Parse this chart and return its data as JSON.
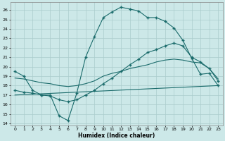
{
  "xlabel": "Humidex (Indice chaleur)",
  "bg_color": "#cce8e8",
  "grid_color": "#aacccc",
  "line_color": "#1a6b6b",
  "xlim": [
    -0.5,
    23.5
  ],
  "ylim": [
    13.8,
    26.8
  ],
  "yticks": [
    14,
    15,
    16,
    17,
    18,
    19,
    20,
    21,
    22,
    23,
    24,
    25,
    26
  ],
  "xticks": [
    0,
    1,
    2,
    3,
    4,
    5,
    6,
    7,
    8,
    9,
    10,
    11,
    12,
    13,
    14,
    15,
    16,
    17,
    18,
    19,
    20,
    21,
    22,
    23
  ],
  "curve1_x": [
    0,
    1,
    2,
    3,
    4,
    5,
    6,
    7,
    8,
    9,
    10,
    11,
    12,
    13,
    14,
    15,
    16,
    17,
    18,
    19,
    20,
    21,
    22,
    23
  ],
  "curve1_y": [
    19.5,
    19.0,
    17.5,
    17.0,
    17.0,
    14.8,
    14.3,
    17.2,
    21.0,
    23.2,
    25.2,
    25.8,
    26.3,
    26.1,
    25.9,
    25.2,
    25.2,
    24.8,
    24.1,
    22.8,
    20.9,
    19.2,
    19.3,
    18.0
  ],
  "curve2_x": [
    0,
    1,
    2,
    3,
    4,
    5,
    6,
    7,
    8,
    9,
    10,
    11,
    12,
    13,
    14,
    15,
    16,
    17,
    18,
    19,
    20,
    21,
    22,
    23
  ],
  "curve2_y": [
    17.5,
    17.3,
    17.2,
    17.0,
    16.9,
    16.5,
    16.3,
    16.5,
    17.0,
    17.5,
    18.2,
    18.8,
    19.5,
    20.2,
    20.8,
    21.5,
    21.8,
    22.2,
    22.5,
    22.2,
    21.0,
    20.5,
    19.8,
    18.5
  ],
  "curve3_x": [
    0,
    1,
    2,
    3,
    4,
    5,
    6,
    7,
    8,
    9,
    10,
    11,
    12,
    13,
    14,
    15,
    16,
    17,
    18,
    19,
    20,
    21,
    22,
    23
  ],
  "curve3_y": [
    18.8,
    18.7,
    18.5,
    18.3,
    18.2,
    18.0,
    17.9,
    18.0,
    18.2,
    18.5,
    19.0,
    19.3,
    19.5,
    19.8,
    20.0,
    20.2,
    20.5,
    20.7,
    20.8,
    20.7,
    20.5,
    20.4,
    19.8,
    18.7
  ],
  "curve4_x": [
    0,
    23
  ],
  "curve4_y": [
    17.0,
    18.0
  ]
}
